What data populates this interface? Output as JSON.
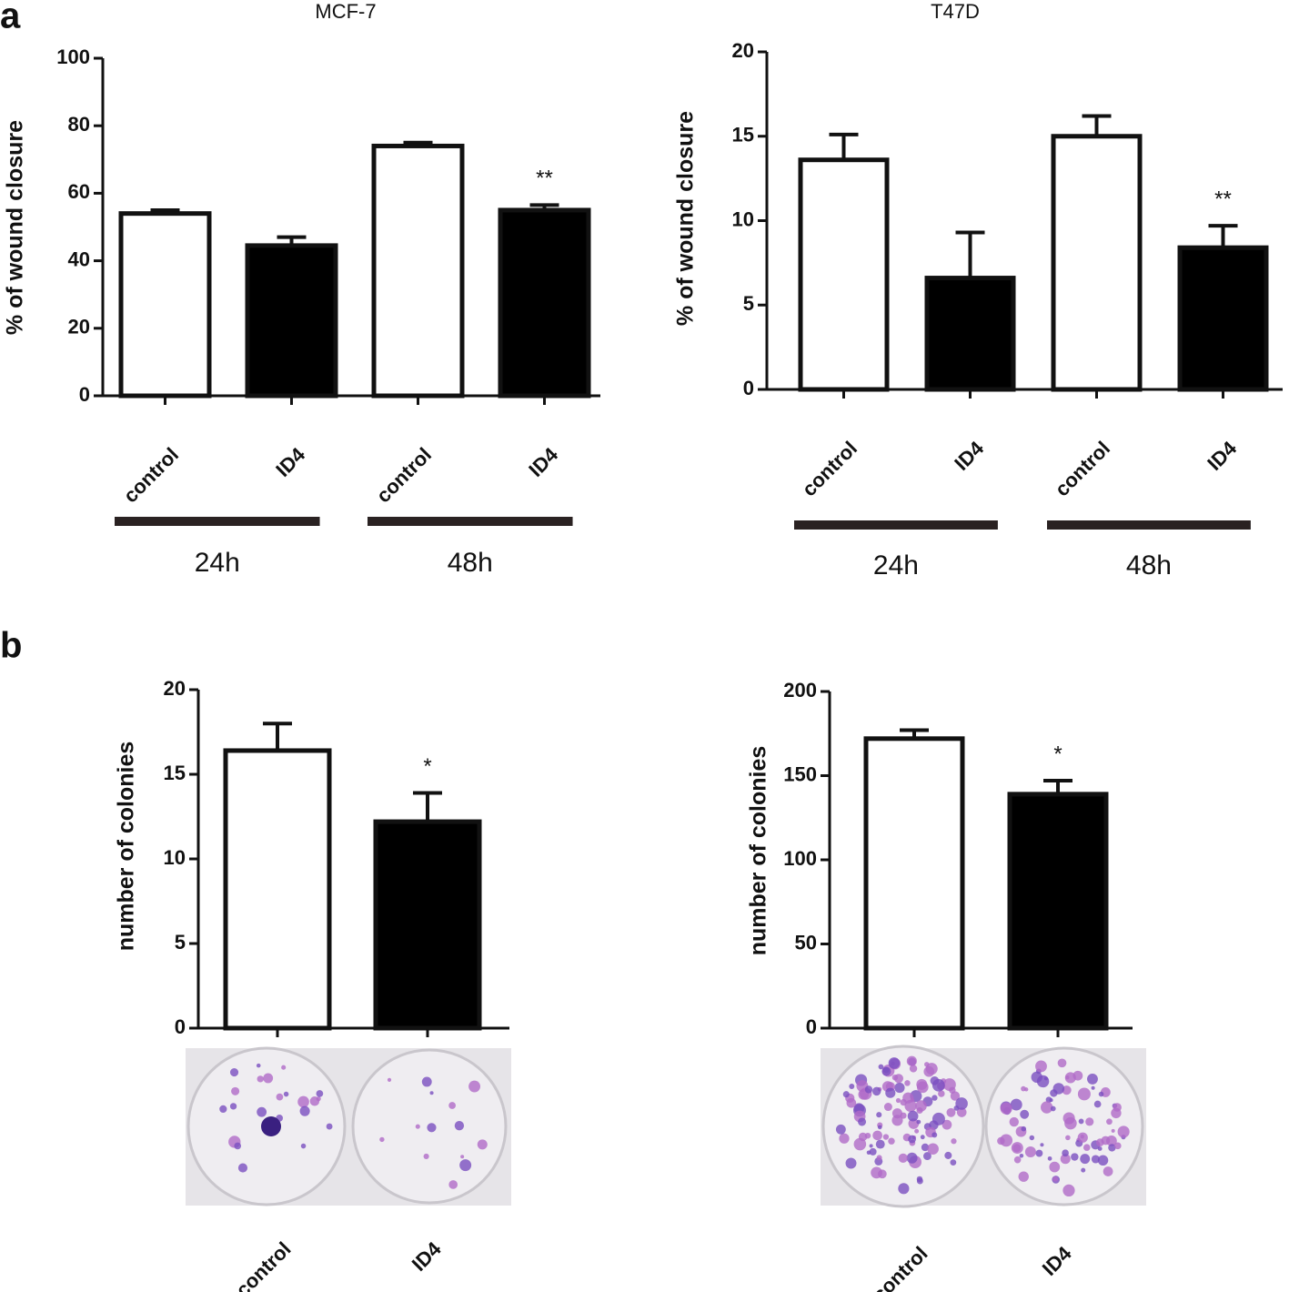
{
  "panel_labels": [
    "a",
    "b"
  ],
  "chart_data": [
    {
      "type": "bar",
      "title": "MCF-7",
      "y_label": "% of wound closure",
      "categories": [
        "control",
        "ID4",
        "control",
        "ID4"
      ],
      "values": [
        54,
        44.5,
        74,
        55
      ],
      "errors": [
        1,
        2.5,
        1,
        1.5
      ],
      "bar_colors": [
        "#ffffff",
        "#000000",
        "#ffffff",
        "#000000"
      ],
      "annotations": [
        null,
        null,
        null,
        "**"
      ],
      "groups": [
        "24h",
        "48h"
      ],
      "ylim": [
        0,
        100
      ],
      "yticks": [
        0,
        20,
        40,
        60,
        80,
        100
      ]
    },
    {
      "type": "bar",
      "title": "T47D",
      "y_label": "% of wound closure",
      "categories": [
        "control",
        "ID4",
        "control",
        "ID4"
      ],
      "values": [
        13.6,
        6.6,
        15,
        8.4
      ],
      "errors": [
        1.5,
        2.7,
        1.2,
        1.3
      ],
      "bar_colors": [
        "#ffffff",
        "#000000",
        "#ffffff",
        "#000000"
      ],
      "annotations": [
        null,
        null,
        null,
        "**"
      ],
      "groups": [
        "24h",
        "48h"
      ],
      "ylim": [
        0,
        20
      ],
      "yticks": [
        0,
        5,
        10,
        15,
        20
      ]
    },
    {
      "type": "bar",
      "y_label": "number of colonies",
      "categories": [
        "control",
        "ID4"
      ],
      "values": [
        16.4,
        12.2
      ],
      "errors": [
        1.6,
        1.7
      ],
      "bar_colors": [
        "#ffffff",
        "#000000"
      ],
      "annotations": [
        null,
        "*"
      ],
      "ylim": [
        0,
        20
      ],
      "yticks": [
        0,
        5,
        10,
        15,
        20
      ]
    },
    {
      "type": "bar",
      "y_label": "number of colonies",
      "categories": [
        "control",
        "ID4"
      ],
      "values": [
        172,
        139
      ],
      "errors": [
        5,
        8
      ],
      "bar_colors": [
        "#ffffff",
        "#000000"
      ],
      "annotations": [
        null,
        "*"
      ],
      "ylim": [
        0,
        200
      ],
      "yticks": [
        0,
        50,
        100,
        150,
        200
      ]
    }
  ]
}
